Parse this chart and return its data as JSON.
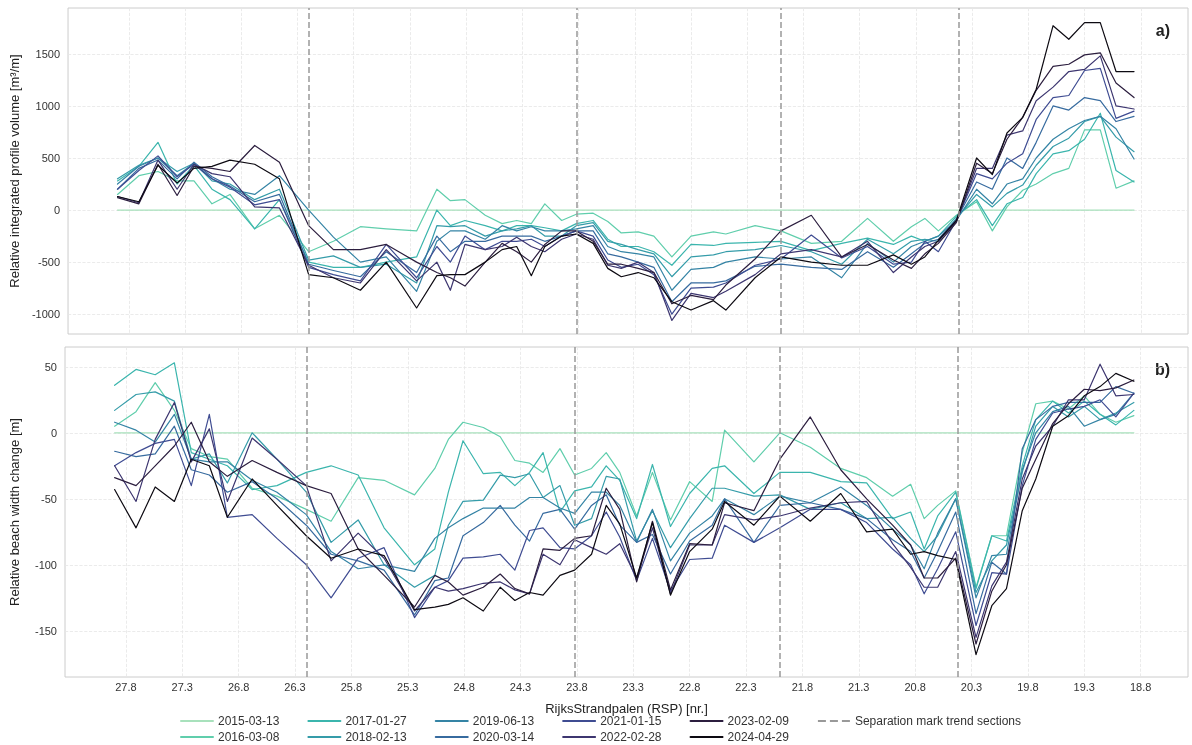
{
  "chart_data": [
    {
      "type": "line",
      "ylabel": "Relative integrated profile volume [m³/m]",
      "annotations": [
        "a)"
      ],
      "legend": false,
      "tick_labels": "y",
      "grid": true,
      "line_style": "solid",
      "marker": "none",
      "x": [
        27.9,
        27.71,
        27.54,
        27.37,
        27.22,
        27.06,
        26.9,
        26.68,
        26.46,
        26.2,
        25.98,
        25.74,
        25.51,
        25.24,
        25.06,
        24.94,
        24.81,
        24.63,
        24.48,
        24.35,
        24.22,
        24.1,
        23.95,
        23.82,
        23.67,
        23.54,
        23.42,
        23.27,
        23.13,
        22.97,
        22.8,
        22.6,
        22.49,
        22.23,
        22.0,
        21.73,
        21.46,
        21.23,
        21.0,
        20.84,
        20.72,
        20.6,
        20.44,
        20.26,
        20.12,
        19.99,
        19.85,
        19.73,
        19.58,
        19.44,
        19.3,
        19.16,
        19.02,
        18.86
      ],
      "xlim": [
        28.34,
        18.38
      ],
      "xticks": [
        27.8,
        27.3,
        26.8,
        26.3,
        25.8,
        25.3,
        24.8,
        24.3,
        23.8,
        23.3,
        22.8,
        22.3,
        21.8,
        21.3,
        20.8,
        20.3,
        19.8,
        19.3,
        18.8
      ],
      "ylim": [
        -1190,
        1940
      ],
      "yticks": [
        -1000,
        -500,
        0,
        500,
        1000,
        1500
      ],
      "ref_lines": [
        {
          "axis": "x",
          "value": 26.2,
          "color": "#999999",
          "line_style": "dashed"
        },
        {
          "axis": "x",
          "value": 23.82,
          "color": "#999999",
          "line_style": "dashed"
        },
        {
          "axis": "x",
          "value": 22.0,
          "color": "#999999",
          "line_style": "dashed"
        },
        {
          "axis": "x",
          "value": 20.42,
          "color": "#999999",
          "line_style": "dashed"
        }
      ],
      "series": [
        {
          "color": "#a8e1bc",
          "values": [
            0,
            0,
            0,
            0,
            0,
            0,
            0,
            0,
            0,
            0,
            0,
            0,
            0,
            0,
            0,
            0,
            0,
            0,
            0,
            0,
            0,
            0,
            0,
            0,
            0,
            0,
            0,
            0,
            0,
            0,
            0,
            0,
            0,
            0,
            0,
            0,
            0,
            0,
            0,
            0,
            0,
            0,
            0,
            0,
            0,
            0,
            0,
            0,
            0,
            0,
            0,
            0,
            0,
            0
          ]
        },
        {
          "color": "#60ceac",
          "values": [
            150,
            330,
            370,
            280,
            280,
            60,
            150,
            -180,
            -50,
            -400,
            -300,
            -160,
            -180,
            -200,
            200,
            90,
            100,
            -50,
            -130,
            -100,
            -130,
            60,
            -100,
            -40,
            -30,
            -110,
            -220,
            -210,
            -250,
            -450,
            -250,
            -210,
            -230,
            -150,
            -200,
            -320,
            -300,
            -80,
            -300,
            -160,
            -80,
            -200,
            -50,
            80,
            -200,
            30,
            190,
            250,
            350,
            400,
            770,
            770,
            210,
            280
          ]
        },
        {
          "color": "#3bb5ad",
          "values": [
            280,
            420,
            650,
            250,
            430,
            200,
            100,
            -180,
            100,
            -500,
            -550,
            -550,
            -500,
            -450,
            0,
            -150,
            -100,
            -150,
            -200,
            -150,
            -150,
            -170,
            -200,
            -130,
            -100,
            -280,
            -350,
            -350,
            -400,
            -530,
            -330,
            -340,
            -320,
            -310,
            -300,
            -390,
            -320,
            -270,
            -330,
            -250,
            -300,
            -250,
            -60,
            100,
            -150,
            60,
            120,
            350,
            540,
            570,
            680,
            930,
            380,
            270
          ]
        },
        {
          "color": "#359ca9",
          "values": [
            300,
            430,
            500,
            370,
            450,
            280,
            250,
            100,
            200,
            -480,
            -440,
            -550,
            -520,
            -700,
            -150,
            -160,
            -150,
            -250,
            -200,
            -180,
            -150,
            -250,
            -250,
            -150,
            -120,
            -300,
            -330,
            -380,
            -420,
            -640,
            -450,
            -430,
            -400,
            -380,
            -340,
            -400,
            -520,
            -280,
            -420,
            -300,
            -280,
            -300,
            -80,
            150,
            30,
            160,
            240,
            430,
            610,
            690,
            850,
            900,
            700,
            560
          ]
        },
        {
          "color": "#3584a5",
          "values": [
            250,
            420,
            500,
            330,
            450,
            300,
            200,
            150,
            330,
            0,
            -260,
            -500,
            -450,
            -780,
            -300,
            -200,
            -200,
            -280,
            -150,
            -200,
            -160,
            -200,
            -200,
            -180,
            -150,
            -350,
            -400,
            -420,
            -450,
            -770,
            -570,
            -550,
            -500,
            -450,
            -470,
            -450,
            -650,
            -320,
            -500,
            -350,
            -300,
            -250,
            -100,
            200,
            60,
            250,
            300,
            500,
            680,
            780,
            860,
            900,
            780,
            490
          ]
        },
        {
          "color": "#376b9f",
          "values": [
            200,
            400,
            480,
            300,
            460,
            320,
            230,
            80,
            150,
            -520,
            -580,
            -640,
            -400,
            -600,
            -250,
            -400,
            -300,
            -300,
            -250,
            -250,
            -250,
            -300,
            -250,
            -200,
            -200,
            -420,
            -450,
            -500,
            -550,
            -880,
            -700,
            -700,
            -680,
            -540,
            -520,
            -550,
            -570,
            -400,
            -550,
            -420,
            -320,
            -280,
            -90,
            270,
            200,
            500,
            400,
            650,
            1000,
            960,
            1080,
            1050,
            850,
            900
          ]
        },
        {
          "color": "#3f4c92",
          "values": [
            200,
            380,
            520,
            320,
            440,
            300,
            220,
            50,
            100,
            -550,
            -620,
            -680,
            -330,
            -650,
            -350,
            -500,
            -250,
            -380,
            -300,
            -300,
            -280,
            -350,
            -250,
            -200,
            -250,
            -480,
            -550,
            -520,
            -620,
            -1000,
            -750,
            -740,
            -700,
            -530,
            -470,
            -240,
            -460,
            -350,
            -520,
            -500,
            -300,
            -400,
            -100,
            350,
            300,
            450,
            540,
            870,
            1080,
            1100,
            1340,
            1360,
            880,
            950
          ]
        },
        {
          "color": "#3d3670",
          "values": [
            130,
            70,
            480,
            200,
            440,
            350,
            320,
            30,
            20,
            -530,
            -650,
            -700,
            -380,
            -680,
            -500,
            -770,
            -330,
            -380,
            -350,
            -260,
            -350,
            -400,
            -280,
            -230,
            -280,
            -530,
            -560,
            -500,
            -600,
            -1060,
            -800,
            -840,
            -780,
            -620,
            -420,
            -380,
            -450,
            -300,
            -600,
            -450,
            -350,
            -300,
            -110,
            400,
            400,
            720,
            760,
            1050,
            1180,
            1330,
            1350,
            1480,
            1000,
            970
          ]
        },
        {
          "color": "#2c1e3f",
          "values": [
            120,
            60,
            440,
            140,
            420,
            400,
            370,
            620,
            460,
            -150,
            -380,
            -380,
            -330,
            -500,
            -600,
            -650,
            -730,
            -500,
            -320,
            -400,
            -500,
            -330,
            -200,
            -200,
            -300,
            -520,
            -520,
            -560,
            -600,
            -900,
            -820,
            -860,
            -720,
            -470,
            -200,
            -50,
            -450,
            -330,
            -480,
            -560,
            -420,
            -320,
            -120,
            450,
            350,
            680,
            890,
            1150,
            1380,
            1400,
            1490,
            1510,
            1220,
            1080
          ]
        },
        {
          "color": "#0d0a12",
          "values": [
            130,
            80,
            430,
            260,
            400,
            420,
            480,
            440,
            300,
            -620,
            -650,
            -770,
            -500,
            -940,
            -630,
            -620,
            -620,
            -500,
            -380,
            -350,
            -630,
            -350,
            -250,
            -230,
            -320,
            -560,
            -640,
            -600,
            -650,
            -880,
            -960,
            -870,
            -960,
            -650,
            -450,
            -500,
            -530,
            -530,
            -430,
            -520,
            -450,
            -290,
            -100,
            500,
            340,
            740,
            890,
            1160,
            1770,
            1640,
            1800,
            1800,
            1330,
            1330
          ]
        }
      ]
    },
    {
      "type": "line",
      "xlabel": "RijksStrandpalen (RSP) [nr.]",
      "ylabel": "Relative beach width change [m]",
      "annotations": [
        "b)"
      ],
      "legend": "bottom",
      "grid": true,
      "line_style": "solid",
      "marker": "none",
      "x": [
        27.9,
        27.71,
        27.54,
        27.37,
        27.22,
        27.06,
        26.9,
        26.68,
        26.46,
        26.2,
        25.98,
        25.74,
        25.51,
        25.24,
        25.06,
        24.94,
        24.81,
        24.63,
        24.48,
        24.35,
        24.22,
        24.1,
        23.95,
        23.82,
        23.67,
        23.54,
        23.42,
        23.27,
        23.13,
        22.97,
        22.8,
        22.6,
        22.49,
        22.23,
        22.0,
        21.73,
        21.46,
        21.23,
        21.0,
        20.84,
        20.72,
        20.6,
        20.44,
        20.26,
        20.12,
        19.99,
        19.85,
        19.73,
        19.58,
        19.44,
        19.3,
        19.16,
        19.02,
        18.86
      ],
      "xlim": [
        28.34,
        18.38
      ],
      "xticks": [
        27.8,
        27.3,
        26.8,
        26.3,
        25.8,
        25.3,
        24.8,
        24.3,
        23.8,
        23.3,
        22.8,
        22.3,
        21.8,
        21.3,
        20.8,
        20.3,
        19.8,
        19.3,
        18.8
      ],
      "ylim": [
        -185,
        65
      ],
      "yticks": [
        -150,
        -100,
        -50,
        0,
        50
      ],
      "ref_lines": [
        {
          "axis": "x",
          "value": 26.2,
          "label": "Separation mark trend sections",
          "color": "#999999",
          "line_style": "dashed"
        },
        {
          "axis": "x",
          "value": 23.82,
          "color": "#999999",
          "line_style": "dashed"
        },
        {
          "axis": "x",
          "value": 22.0,
          "color": "#999999",
          "line_style": "dashed"
        },
        {
          "axis": "x",
          "value": 20.42,
          "color": "#999999",
          "line_style": "dashed"
        }
      ],
      "series": [
        {
          "name": "2015-03-13",
          "color": "#a8e1bc",
          "values": [
            0,
            0,
            0,
            0,
            0,
            0,
            0,
            0,
            0,
            0,
            0,
            0,
            0,
            0,
            0,
            0,
            0,
            0,
            0,
            0,
            0,
            0,
            0,
            0,
            0,
            0,
            0,
            0,
            0,
            0,
            0,
            0,
            0,
            0,
            0,
            0,
            0,
            0,
            0,
            0,
            0,
            0,
            0,
            0,
            0,
            0,
            0,
            0,
            0,
            0,
            0,
            0,
            0,
            0
          ]
        },
        {
          "name": "2016-03-08",
          "color": "#60ceac",
          "values": [
            5,
            16,
            38,
            17,
            -12,
            -18,
            -20,
            -42,
            -48,
            -58,
            -67,
            -34,
            -36,
            -47,
            -27,
            -5,
            8,
            4,
            -3,
            -21,
            -23,
            -30,
            -12,
            -32,
            -27,
            -15,
            -30,
            -63,
            -30,
            -66,
            -37,
            -52,
            2,
            -22,
            0,
            -11,
            -27,
            -34,
            -48,
            -39,
            -65,
            -55,
            -44,
            -117,
            -78,
            -78,
            -15,
            22,
            24,
            18,
            28,
            14,
            8,
            13
          ]
        },
        {
          "name": "2017-01-27",
          "color": "#3bb5ad",
          "values": [
            36,
            48,
            44,
            53,
            -15,
            -20,
            -25,
            -43,
            -40,
            -30,
            -25,
            -32,
            -72,
            -100,
            -88,
            -45,
            -6,
            -31,
            -30,
            -40,
            -30,
            -15,
            -60,
            -44,
            -41,
            -25,
            -36,
            -65,
            -24,
            -71,
            -46,
            -27,
            -25,
            -46,
            -30,
            -30,
            -37,
            -38,
            -65,
            -60,
            -88,
            -63,
            -45,
            -118,
            -78,
            -82,
            -25,
            10,
            24,
            15,
            24,
            14,
            6,
            17
          ]
        },
        {
          "name": "2018-02-13",
          "color": "#359ca9",
          "values": [
            17,
            29,
            31,
            24,
            -20,
            -16,
            -38,
            0,
            -20,
            -45,
            -83,
            -66,
            -100,
            -117,
            -108,
            -70,
            -52,
            -51,
            -32,
            -34,
            -31,
            -49,
            -40,
            -70,
            -65,
            -33,
            -35,
            -82,
            -59,
            -87,
            -65,
            -42,
            -42,
            -48,
            -47,
            -58,
            -53,
            -65,
            -64,
            -80,
            -90,
            -78,
            -50,
            -121,
            -97,
            -85,
            -30,
            5,
            20,
            12,
            20,
            10,
            15,
            23
          ]
        },
        {
          "name": "2019-06-13",
          "color": "#3584a5",
          "values": [
            8,
            2,
            -7,
            14,
            -20,
            -22,
            -22,
            -36,
            -45,
            -62,
            -90,
            -103,
            -100,
            -105,
            -80,
            -72,
            -65,
            -57,
            -57,
            -57,
            -49,
            -49,
            -57,
            -61,
            -45,
            -45,
            -55,
            -83,
            -58,
            -97,
            -76,
            -63,
            -50,
            -62,
            -48,
            -53,
            -41,
            -55,
            -73,
            -85,
            -103,
            -76,
            -50,
            -125,
            -93,
            -92,
            -28,
            0,
            16,
            20,
            5,
            10,
            14,
            30
          ]
        },
        {
          "name": "2020-03-14",
          "color": "#376b9f",
          "values": [
            -14,
            -18,
            -16,
            5,
            -28,
            -32,
            -45,
            -37,
            -50,
            -70,
            -92,
            -97,
            -104,
            -138,
            -112,
            -110,
            -78,
            -68,
            -55,
            -70,
            -82,
            -61,
            -58,
            -73,
            -55,
            -47,
            -70,
            -83,
            -77,
            -107,
            -82,
            -70,
            -50,
            -83,
            -55,
            -53,
            -58,
            -65,
            -81,
            -90,
            -110,
            -90,
            -60,
            -137,
            -98,
            -107,
            -12,
            10,
            20,
            23,
            23,
            23,
            35,
            30
          ]
        },
        {
          "name": "2021-01-15",
          "color": "#3f4c92",
          "values": [
            -25,
            -15,
            -8,
            -5,
            -40,
            14,
            -64,
            -62,
            -80,
            -100,
            -125,
            -95,
            -87,
            -140,
            -117,
            -112,
            -95,
            -94,
            -92,
            -104,
            -74,
            -72,
            -87,
            -88,
            -78,
            -60,
            -79,
            -112,
            -80,
            -120,
            -96,
            -95,
            -70,
            -83,
            -72,
            -58,
            -58,
            -68,
            -88,
            -100,
            -122,
            -103,
            -75,
            -146,
            -106,
            -107,
            -40,
            -5,
            15,
            18,
            20,
            25,
            12,
            30
          ]
        },
        {
          "name": "2022-02-28",
          "color": "#3d3670",
          "values": [
            -25,
            -52,
            -5,
            23,
            -22,
            3,
            -52,
            -4,
            -20,
            -40,
            -97,
            -76,
            -95,
            -135,
            -117,
            -120,
            -118,
            -114,
            -113,
            -119,
            -122,
            -92,
            -100,
            -81,
            -87,
            -92,
            -84,
            -110,
            -72,
            -122,
            -85,
            -85,
            -62,
            -66,
            -63,
            -57,
            -53,
            -52,
            -84,
            -102,
            -117,
            -117,
            -90,
            -155,
            -116,
            -98,
            -35,
            -10,
            5,
            25,
            25,
            52,
            28,
            29
          ]
        },
        {
          "name": "2023-02-09",
          "color": "#2c1e3f",
          "values": [
            -34,
            -40,
            -25,
            -10,
            8,
            -22,
            -33,
            -21,
            -30,
            -40,
            -46,
            -88,
            -108,
            -132,
            -108,
            -113,
            -123,
            -117,
            -107,
            -118,
            -122,
            -88,
            -89,
            -80,
            -78,
            -42,
            -58,
            -113,
            -67,
            -119,
            -84,
            -85,
            -53,
            -59,
            -20,
            12,
            -28,
            -50,
            -70,
            -85,
            -110,
            -110,
            -95,
            -160,
            -120,
            -100,
            -42,
            -20,
            7,
            22,
            33,
            32,
            34,
            40
          ]
        },
        {
          "name": "2024-04-29",
          "color": "#0d0a12",
          "values": [
            -43,
            -72,
            -41,
            -52,
            -20,
            -25,
            -64,
            -35,
            -55,
            -78,
            -95,
            -88,
            -93,
            -134,
            -132,
            -130,
            -125,
            -135,
            -117,
            -127,
            -121,
            -123,
            -108,
            -104,
            -92,
            -55,
            -69,
            -110,
            -68,
            -123,
            -90,
            -73,
            -52,
            -70,
            -48,
            -67,
            -46,
            -75,
            -73,
            -92,
            -90,
            -93,
            -96,
            -168,
            -131,
            -118,
            -59,
            -35,
            5,
            13,
            28,
            35,
            45,
            39
          ]
        }
      ]
    }
  ]
}
